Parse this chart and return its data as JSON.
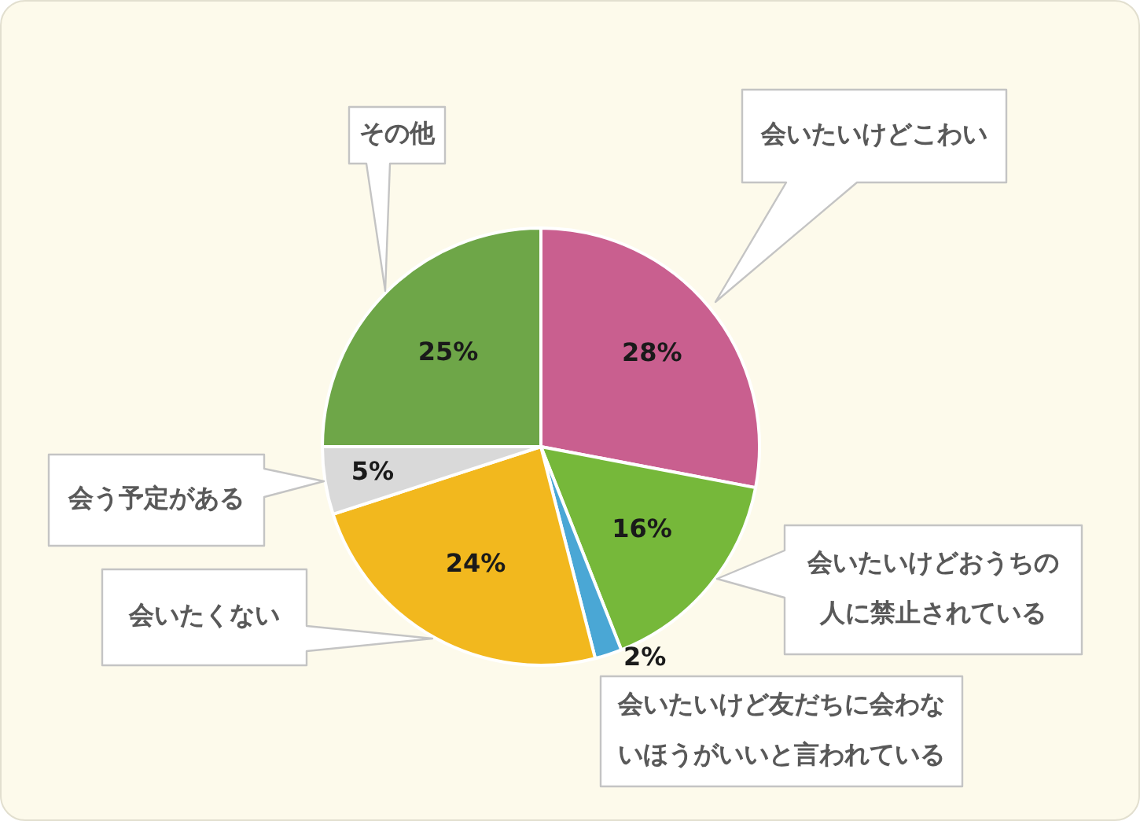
{
  "chart_data": {
    "type": "pie",
    "categories": [
      "会いたいけどこわい",
      "会いたいけどおうちの人に禁止されている",
      "会いたいけど友だちに会わないほうがいいと言われている",
      "会いたくない",
      "会う予定がある",
      "その他"
    ],
    "values": [
      28,
      16,
      2,
      24,
      5,
      25
    ],
    "colors": [
      "#c95f8f",
      "#76b83a",
      "#4aa7d5",
      "#f2b81e",
      "#d9d9d9",
      "#6ea648"
    ],
    "value_labels": [
      "28%",
      "16%",
      "2%",
      "24%",
      "5%",
      "25%"
    ]
  }
}
